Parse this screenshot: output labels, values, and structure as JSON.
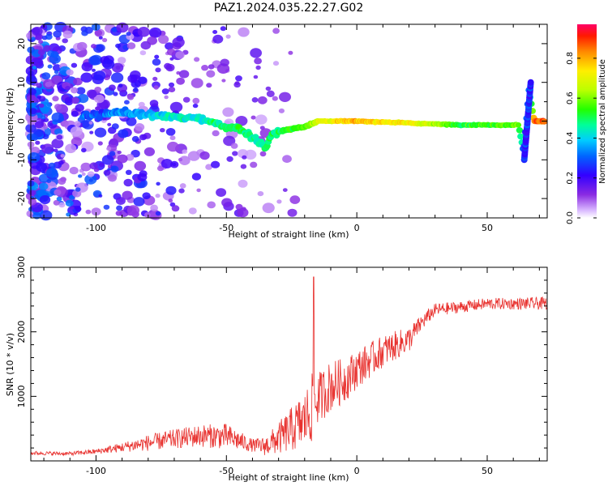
{
  "page": {
    "title": "PAZ1.2024.035.22.27.G02"
  },
  "chart_data": [
    {
      "type": "heatmap",
      "title": "PAZ1.2024.035.22.27.G02",
      "xlabel": "Height of straight line (km)",
      "ylabel": "Frequency (Hz)",
      "xlim": [
        -125,
        73
      ],
      "ylim": [
        -25,
        25
      ],
      "x_ticks": [
        -100,
        -50,
        0,
        50
      ],
      "y_ticks": [
        -20,
        -10,
        0,
        10,
        20
      ],
      "colorbar": {
        "label": "Normalized spectral amplitude",
        "range": [
          0,
          0.97
        ],
        "ticks": [
          0.0,
          0.2,
          0.4,
          0.6,
          0.8
        ]
      },
      "main_trace": {
        "description_height_km": [
          -100,
          -90,
          -80,
          -70,
          -60,
          -50,
          -45,
          -40,
          -35,
          -32,
          -25,
          -20,
          -15,
          0,
          20,
          40,
          62,
          64,
          66,
          68,
          73
        ],
        "frequency_hz": [
          1.5,
          2.5,
          1.5,
          1.0,
          0.5,
          -1.5,
          -2.0,
          -4.0,
          -7.0,
          -3.0,
          -2.0,
          -1.5,
          0.0,
          0.0,
          -0.5,
          -1.0,
          -1.0,
          -8.0,
          8.0,
          0.0,
          0.0
        ],
        "amplitude": [
          0.3,
          0.35,
          0.4,
          0.45,
          0.45,
          0.5,
          0.55,
          0.45,
          0.5,
          0.5,
          0.55,
          0.6,
          0.7,
          0.8,
          0.75,
          0.55,
          0.6,
          0.3,
          0.3,
          0.85,
          0.9
        ]
      }
    },
    {
      "type": "line",
      "xlabel": "Height of straight line (km)",
      "ylabel": "SNR (10 * v/v)",
      "xlim": [
        -125,
        73
      ],
      "ylim": [
        0,
        3000
      ],
      "x_ticks": [
        -100,
        -50,
        0,
        50
      ],
      "y_ticks": [
        1000,
        2000,
        3000
      ],
      "color": "#e8312e",
      "envelope": {
        "x": [
          -125,
          -110,
          -100,
          -90,
          -80,
          -70,
          -60,
          -50,
          -45,
          -40,
          -35,
          -30,
          -25,
          -20,
          -17,
          -15,
          -10,
          -5,
          0,
          10,
          20,
          25,
          30,
          40,
          50,
          60,
          73
        ],
        "base": [
          110,
          100,
          130,
          180,
          230,
          280,
          320,
          300,
          250,
          200,
          170,
          250,
          350,
          450,
          600,
          800,
          1000,
          1100,
          1300,
          1600,
          1800,
          2100,
          2300,
          2350,
          2400,
          2400,
          2400
        ],
        "spread": [
          60,
          60,
          80,
          150,
          250,
          300,
          350,
          400,
          300,
          200,
          300,
          500,
          700,
          900,
          1100,
          800,
          800,
          700,
          600,
          500,
          400,
          250,
          200,
          180,
          180,
          180,
          200
        ]
      },
      "peak": {
        "x": -16.5,
        "y": 2850
      }
    }
  ]
}
